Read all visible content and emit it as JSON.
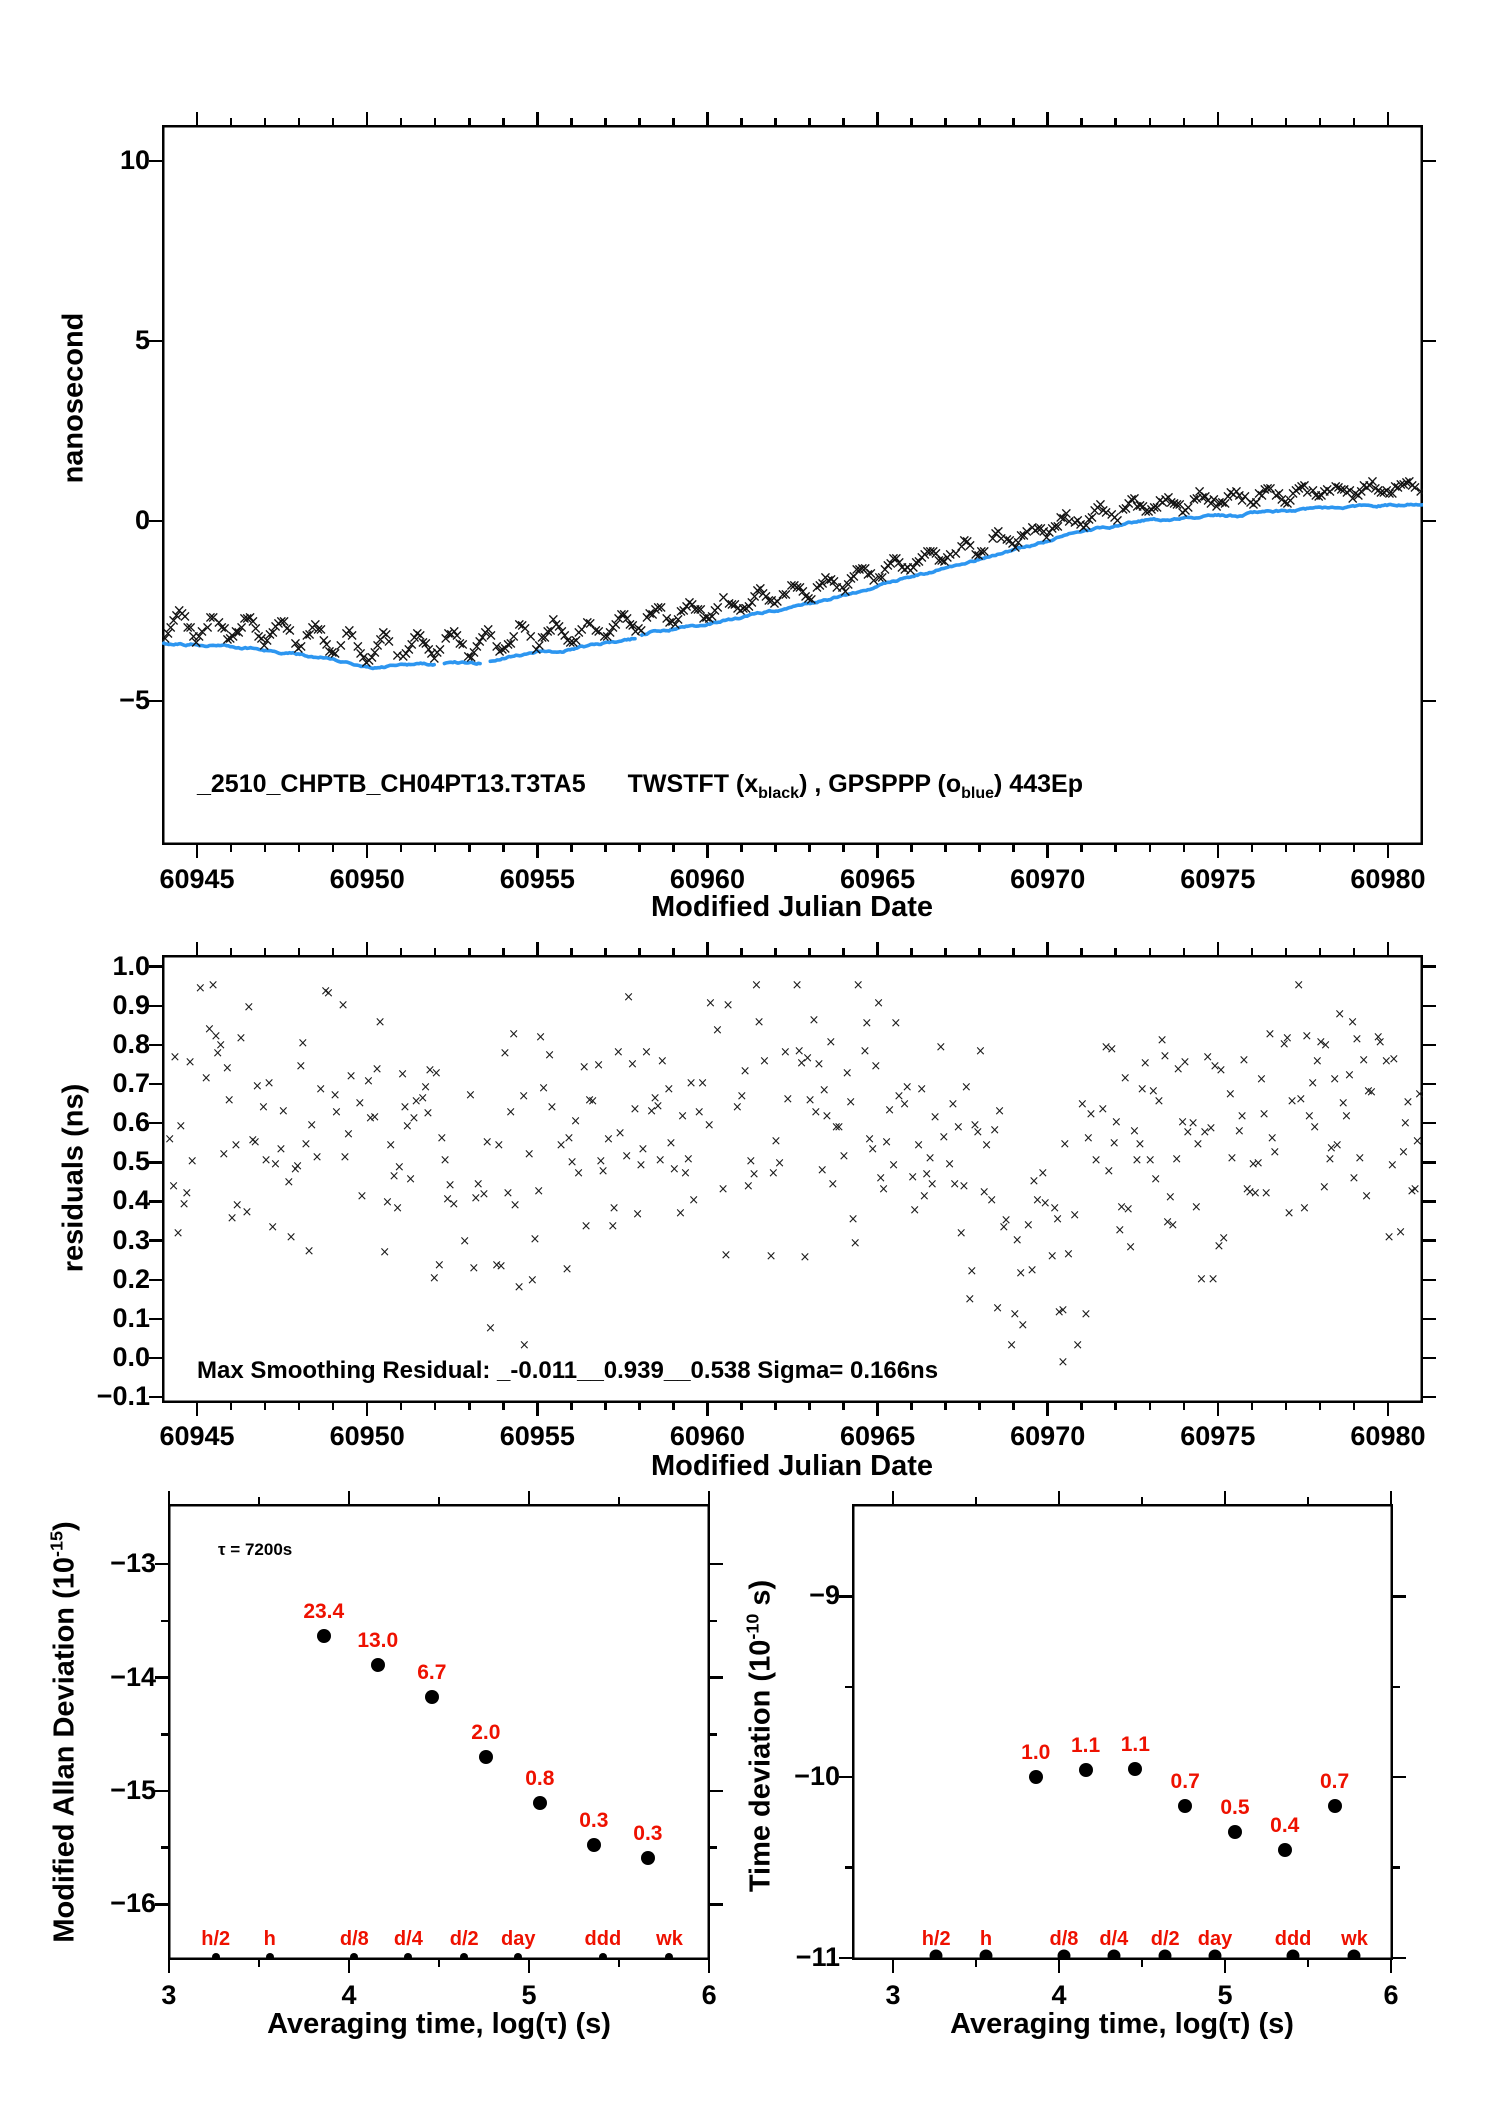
{
  "colors": {
    "blue_series": "#2D96F0",
    "red_labels": "#EE1100",
    "black": "#000000"
  },
  "chart_data": {
    "type": [
      "line",
      "scatter",
      "scatter",
      "scatter"
    ],
    "top": {
      "y_axis_label": "nanosecond",
      "x_axis_label": "Modified Julian Date",
      "title": {
        "id": "_2510_CHPTB_CH04PT13.T3TA5",
        "series1_pre": "TWSTFT (x",
        "series1_sub": "black",
        "mid": ") ,  GPSPPP (o",
        "series2_sub": "blue",
        "end": ")  443Ep"
      },
      "x_range": [
        60943.97,
        60981.03
      ],
      "y_range": [
        -9,
        11
      ],
      "x_major": [
        60945,
        60950,
        60955,
        60960,
        60965,
        60970,
        60975,
        60980
      ],
      "x_minor_step": 1,
      "y_major": [
        10,
        5,
        0,
        -5
      ],
      "blue_line_keypoints": [
        [
          60944,
          -3.38
        ],
        [
          60945,
          -3.43
        ],
        [
          60946,
          -3.5
        ],
        [
          60947,
          -3.58
        ],
        [
          60948,
          -3.7
        ],
        [
          60949,
          -3.85
        ],
        [
          60949.8,
          -4.0
        ],
        [
          60950.3,
          -4.07
        ],
        [
          60950.7,
          -4.03
        ],
        [
          60951.3,
          -4.0
        ],
        [
          60952,
          -3.97
        ],
        [
          60952.6,
          -3.93
        ],
        [
          60953.2,
          -3.96
        ],
        [
          60953.8,
          -3.85
        ],
        [
          60954.3,
          -3.75
        ],
        [
          60955,
          -3.63
        ],
        [
          60955.7,
          -3.6
        ],
        [
          60956.3,
          -3.5
        ],
        [
          60957,
          -3.4
        ],
        [
          60957.7,
          -3.32
        ],
        [
          60958.4,
          -3.1
        ],
        [
          60959,
          -3.0
        ],
        [
          60960,
          -2.85
        ],
        [
          60961,
          -2.68
        ],
        [
          60962,
          -2.5
        ],
        [
          60963,
          -2.3
        ],
        [
          60964,
          -2.06
        ],
        [
          60965,
          -1.8
        ],
        [
          60966,
          -1.55
        ],
        [
          60967,
          -1.3
        ],
        [
          60968,
          -1.05
        ],
        [
          60969,
          -0.8
        ],
        [
          60970,
          -0.55
        ],
        [
          60971,
          -0.3
        ],
        [
          60971.6,
          -0.2
        ],
        [
          60972.2,
          -0.1
        ],
        [
          60973,
          0.05
        ],
        [
          60973.6,
          0.02
        ],
        [
          60974.2,
          0.1
        ],
        [
          60975,
          0.15
        ],
        [
          60975.6,
          0.13
        ],
        [
          60976.3,
          0.27
        ],
        [
          60977,
          0.28
        ],
        [
          60977.6,
          0.33
        ],
        [
          60978.3,
          0.38
        ],
        [
          60979,
          0.4
        ],
        [
          60979.6,
          0.42
        ],
        [
          60980.3,
          0.44
        ],
        [
          60981,
          0.5
        ]
      ],
      "blue_line_gaps": [
        [
          60952.0,
          60952.25
        ],
        [
          60953.35,
          60953.6
        ],
        [
          60957.9,
          60958.05
        ]
      ],
      "black_offset_keypoints": [
        [
          60944,
          0.48
        ],
        [
          60948,
          0.52
        ],
        [
          60950,
          0.5
        ],
        [
          60952,
          0.52
        ],
        [
          60954,
          0.48
        ],
        [
          60956,
          0.45
        ],
        [
          60958,
          0.42
        ],
        [
          60960,
          0.38
        ],
        [
          60963,
          0.36
        ],
        [
          60966,
          0.36
        ],
        [
          60969,
          0.33
        ],
        [
          60971,
          0.35
        ],
        [
          60973,
          0.4
        ],
        [
          60975,
          0.45
        ],
        [
          60977,
          0.45
        ],
        [
          60979,
          0.45
        ],
        [
          60981,
          0.48
        ]
      ],
      "black_amp_keypoints": [
        [
          60944,
          0.38
        ],
        [
          60948,
          0.42
        ],
        [
          60951,
          0.4
        ],
        [
          60954,
          0.38
        ],
        [
          60957,
          0.32
        ],
        [
          60960,
          0.3
        ],
        [
          60964,
          0.26
        ],
        [
          60968,
          0.24
        ],
        [
          60972,
          0.22
        ],
        [
          60976,
          0.2
        ],
        [
          60981,
          0.2
        ]
      ],
      "black_step_days": 0.0833
    },
    "middle": {
      "y_axis_label": "residuals (ns)",
      "x_axis_label": "Modified Julian Date",
      "annotation": "Max Smoothing Residual: _-0.011__0.939__0.538  Sigma= 0.166ns",
      "x_range": [
        60943.97,
        60981.03
      ],
      "y_range": [
        -0.115,
        1.03
      ],
      "x_major": [
        60945,
        60950,
        60955,
        60960,
        60965,
        60970,
        60975,
        60980
      ],
      "x_minor_step": 1,
      "y_major": [
        1.0,
        0.9,
        0.8,
        0.7,
        0.6,
        0.5,
        0.4,
        0.3,
        0.2,
        0.1,
        0.0,
        -0.1
      ],
      "scatter": {
        "start": 60944.12,
        "end": 60981.0,
        "step": 0.0833,
        "base": 0.56,
        "wave_amp": 0.09,
        "wave_period": 16.5,
        "wave_phase": 0.8,
        "dip_center": 60969.8,
        "dip_width": 1.3,
        "dip_depth": 0.2,
        "noise_half_range": 0.42,
        "drop_rate": 0.18,
        "y_min": 0.03,
        "y_max": 0.952,
        "outliers": [
          [
            60954.62,
            0.03
          ],
          [
            60970.45,
            -0.012
          ]
        ]
      }
    },
    "mdev": {
      "y_axis_label_pre": "Modified Allan Deviation (10",
      "y_axis_label_sup": "-15",
      "y_axis_label_post": ")",
      "x_axis_label": "Averaging time, log(τ) (s)",
      "annotation": "τ = 7200s",
      "x_range": [
        2.995,
        6.005
      ],
      "y_range": [
        -16.49,
        -12.47
      ],
      "x_major": [
        3,
        4,
        5,
        6
      ],
      "x_minor_step": 0.5,
      "y_major": [
        -13,
        -14,
        -15,
        -16
      ],
      "y_minor_step": 0.5,
      "points": {
        "log_tau": [
          3.86,
          4.16,
          4.46,
          4.76,
          5.06,
          5.36,
          5.66
        ],
        "log_dev": [
          -13.63,
          -13.89,
          -14.17,
          -14.7,
          -15.11,
          -15.48,
          -15.59
        ],
        "labels": [
          "23.4",
          "13.0",
          "6.7",
          "2.0",
          "0.8",
          "0.3",
          "0.3"
        ]
      },
      "categories": {
        "names": [
          "h/2",
          "h",
          "d/8",
          "d/4",
          "d/2",
          "day",
          "ddd",
          "wk"
        ],
        "log_tau": [
          3.26,
          3.56,
          4.03,
          4.33,
          4.64,
          4.94,
          5.41,
          5.78
        ]
      }
    },
    "tdev": {
      "y_axis_label_pre": "Time deviation (10",
      "y_axis_label_sup": "-10",
      "y_axis_label_post": " s)",
      "x_axis_label": "Averaging time, log(τ) (s)",
      "x_range": [
        2.753,
        6.012
      ],
      "y_range": [
        -11.01,
        -8.49
      ],
      "x_major": [
        3,
        4,
        5,
        6
      ],
      "x_minor_step": 0.5,
      "y_major": [
        -9,
        -10,
        -11
      ],
      "y_minor_step": 0.5,
      "points": {
        "log_tau": [
          3.86,
          4.16,
          4.46,
          4.76,
          5.06,
          5.36,
          5.66
        ],
        "log_dev": [
          -10.0,
          -9.96,
          -9.955,
          -10.16,
          -10.3,
          -10.4,
          -10.16
        ],
        "labels": [
          "1.0",
          "1.1",
          "1.1",
          "0.7",
          "0.5",
          "0.4",
          "0.7"
        ]
      },
      "categories": {
        "names": [
          "h/2",
          "h",
          "d/8",
          "d/4",
          "d/2",
          "day",
          "ddd",
          "wk"
        ],
        "log_tau": [
          3.26,
          3.56,
          4.03,
          4.33,
          4.64,
          4.94,
          5.41,
          5.78
        ]
      }
    }
  }
}
